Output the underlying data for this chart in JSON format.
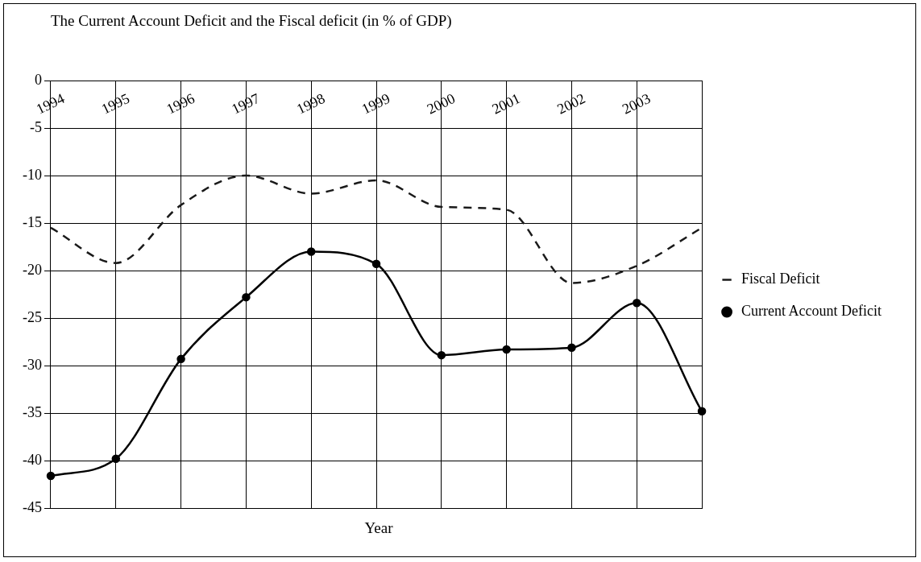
{
  "chart_data": {
    "type": "line",
    "title": "The Current Account Deficit and the Fiscal deficit (in % of GDP)",
    "xlabel": "Year",
    "categories": [
      "1994",
      "1995",
      "1996",
      "1997",
      "1998",
      "1999",
      "2000",
      "2001",
      "2002",
      "2003",
      null
    ],
    "series": [
      {
        "name": "Fiscal Deficit",
        "color": "#1a1a1a",
        "line_style": "dashed",
        "marker": "none",
        "values": [
          -15.5,
          -19.2,
          -13.1,
          -10,
          -11.9,
          -10.5,
          -13.3,
          -13.6,
          -21.3,
          -19.5,
          -15.5
        ]
      },
      {
        "name": "Current Account Deficit",
        "color": "#000000",
        "line_style": "solid",
        "marker": "circle",
        "values": [
          -41.6,
          -39.8,
          -29.3,
          -22.8,
          -18,
          -19.3,
          -28.9,
          -28.3,
          -28.1,
          -23.4,
          -34.8
        ]
      }
    ],
    "ylim": [
      -45,
      0
    ],
    "yticks": [
      0,
      -5,
      -10,
      -15,
      -20,
      -25,
      -30,
      -35,
      -40,
      -45
    ],
    "grid": true,
    "legend": "right"
  }
}
